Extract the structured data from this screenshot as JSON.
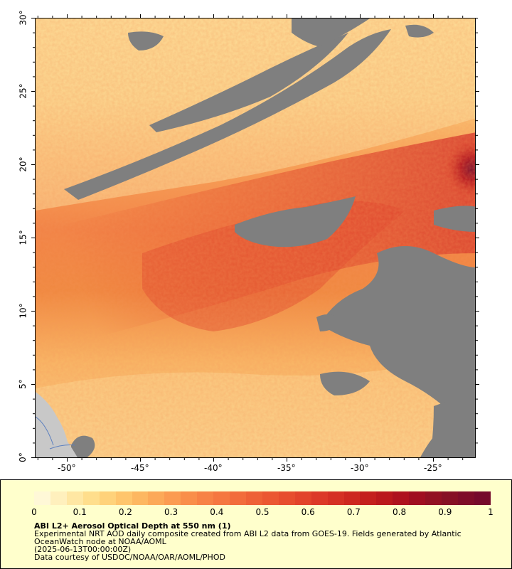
{
  "map": {
    "lat_labels": [
      "30°",
      "25°",
      "20°",
      "15°",
      "10°",
      "5°",
      "0°"
    ],
    "lon_labels": [
      "-50°",
      "-45°",
      "-40°",
      "-35°",
      "-30°",
      "-25°"
    ],
    "colors": {
      "no_data": "#7f7f7f",
      "land": "#c8c8c8",
      "aod_low": "#ffe9b0",
      "aod_mid": "#f6863f",
      "aod_high": "#7d0a2c"
    }
  },
  "colorbar": {
    "labels": [
      "0",
      "0.1",
      "0.2",
      "0.3",
      "0.4",
      "0.5",
      "0.6",
      "0.7",
      "0.8",
      "0.9",
      "1"
    ],
    "colors": [
      "#fff8d7",
      "#fff0bd",
      "#ffe7a3",
      "#ffde8c",
      "#ffd27a",
      "#ffc56c",
      "#fdb761",
      "#fca958",
      "#fb9b51",
      "#f98e4a",
      "#f78245",
      "#f57740",
      "#f26c3b",
      "#ee6136",
      "#eb5732",
      "#e74d2e",
      "#e2432b",
      "#dc3928",
      "#d53024",
      "#cd2720",
      "#c41f1d",
      "#ba181c",
      "#ae121e",
      "#a00e20",
      "#921022",
      "#861024",
      "#7e0c28",
      "#75092b"
    ]
  },
  "legend": {
    "title": "ABI L2+ Aerosol Optical Depth at 550 nm (1)",
    "line1": "Experimental NRT AOD daily composite created from ABI L2 data from GOES-19. Fields generated by Atlantic",
    "line2": "OceanWatch node at NOAA/AOML",
    "line3": "(2025-06-13T00:00:00Z)",
    "line4": "Data courtesy of USDOC/NOAA/OAR/AOML/PHOD"
  }
}
